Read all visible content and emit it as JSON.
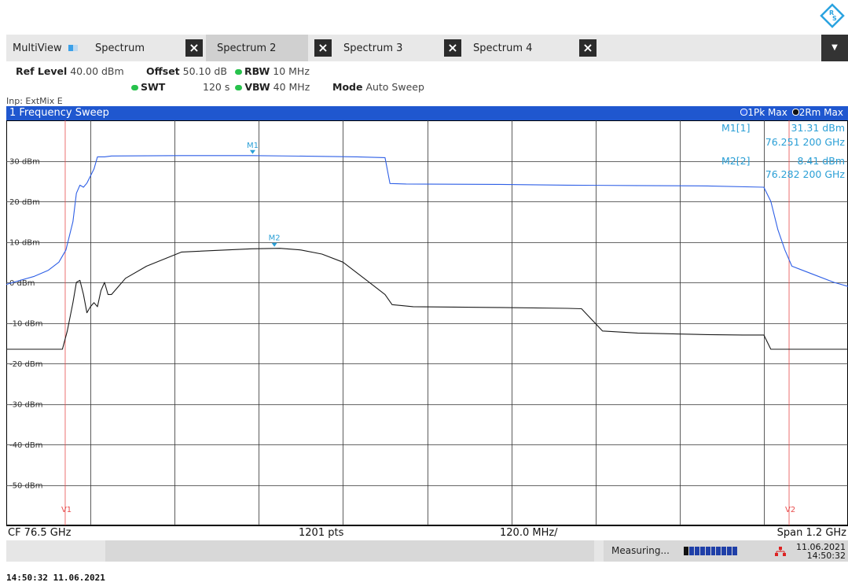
{
  "logo": {
    "icon": "rs-logo-icon"
  },
  "tabs": [
    {
      "label": "MultiView",
      "active": false
    },
    {
      "label": "Spectrum",
      "active": false
    },
    {
      "label": "Spectrum 2",
      "active": true
    },
    {
      "label": "Spectrum 3",
      "active": false
    },
    {
      "label": "Spectrum 4",
      "active": false
    }
  ],
  "params": {
    "ref_level_label": "Ref Level",
    "ref_level_value": "40.00 dBm",
    "offset_label": "Offset",
    "offset_value": "50.10 dB",
    "rbw_label": "RBW",
    "rbw_value": "10 MHz",
    "swt_label": "SWT",
    "swt_value": "120 s",
    "vbw_label": "VBW",
    "vbw_value": "40 MHz",
    "mode_label": "Mode",
    "mode_value": "Auto Sweep",
    "input": "Inp: ExtMix E"
  },
  "window": {
    "title": "1 Frequency Sweep",
    "trace1": "1Pk Max",
    "trace2": "2Rm Max"
  },
  "markers": {
    "m1_label": "M1[1]",
    "m1_level": "31.31 dBm",
    "m1_freq": "76.251 200 GHz",
    "m2_label": "M2[2]",
    "m2_level": "8.41 dBm",
    "m2_freq": "76.282 200 GHz",
    "m1_tag": "M1",
    "m2_tag": "M2"
  },
  "lines": {
    "v1": "V1",
    "v2": "V2"
  },
  "footer": {
    "cf": "CF 76.5 GHz",
    "pts": "1201 pts",
    "div": "120.0 MHz/",
    "span": "Span 1.2 GHz"
  },
  "status": {
    "measuring": "Measuring...",
    "date": "11.06.2021",
    "time": "14:50:32"
  },
  "caption": "14:50:32  11.06.2021",
  "chart_data": {
    "type": "line",
    "x_unit": "GHz",
    "xlim": [
      75.9,
      77.1
    ],
    "ylim": [
      -60,
      40
    ],
    "y_ticks": [
      "30 dBm",
      "20 dBm",
      "10 dBm",
      "0 dBm",
      "-10 dBm",
      "-20 dBm",
      "-30 dBm",
      "-40 dBm",
      "-50 dBm"
    ],
    "y_tick_values": [
      30,
      20,
      10,
      0,
      -10,
      -20,
      -30,
      -40,
      -50
    ],
    "vertical_lines": [
      {
        "label": "V1",
        "x": 75.984
      },
      {
        "label": "V2",
        "x": 77.016
      }
    ],
    "markers": [
      {
        "label": "M1",
        "x": 76.2512,
        "y": 31.31,
        "color": "#2a9fd6"
      },
      {
        "label": "M2",
        "x": 76.2822,
        "y": 8.41,
        "color": "#2a9fd6"
      }
    ],
    "series": [
      {
        "name": "1Pk Max",
        "color": "#2e5fe6",
        "x": [
          75.9,
          75.92,
          75.94,
          75.96,
          75.975,
          75.985,
          75.995,
          76.0,
          76.005,
          76.01,
          76.015,
          76.025,
          76.03,
          76.04,
          76.05,
          76.15,
          76.25,
          76.35,
          76.4,
          76.44,
          76.447,
          76.47,
          76.6,
          76.7,
          76.8,
          76.9,
          76.98,
          76.99,
          77.0,
          77.01,
          77.02,
          77.05,
          77.08,
          77.1
        ],
        "y": [
          -0.5,
          0.5,
          1.5,
          3,
          5,
          8,
          15,
          22,
          24,
          23.5,
          24.5,
          28,
          31,
          31,
          31.2,
          31.3,
          31.31,
          31.1,
          31.0,
          30.8,
          24.4,
          24.3,
          24.2,
          24.0,
          23.9,
          23.8,
          23.5,
          20,
          13,
          8,
          4,
          2,
          0,
          -1
        ]
      },
      {
        "name": "2Rm Max",
        "color": "#1a1a1a",
        "x": [
          75.9,
          75.98,
          75.987,
          75.995,
          76.0,
          76.005,
          76.01,
          76.015,
          76.02,
          76.025,
          76.03,
          76.035,
          76.04,
          76.045,
          76.05,
          76.06,
          76.07,
          76.1,
          76.15,
          76.25,
          76.29,
          76.32,
          76.35,
          76.38,
          76.41,
          76.44,
          76.45,
          76.48,
          76.6,
          76.7,
          76.72,
          76.75,
          76.8,
          76.9,
          76.95,
          76.98,
          76.99,
          77.1
        ],
        "y": [
          -16.5,
          -16.5,
          -12,
          -5,
          0,
          0.5,
          -3,
          -7.5,
          -6,
          -5,
          -6,
          -2,
          0,
          -3,
          -3,
          -1,
          1,
          4,
          7.5,
          8.3,
          8.41,
          8.0,
          7.0,
          5.0,
          1.0,
          -3.0,
          -5.5,
          -6.0,
          -6.2,
          -6.4,
          -6.5,
          -12.0,
          -12.5,
          -12.9,
          -13.0,
          -13.0,
          -16.5,
          -16.5
        ]
      }
    ]
  }
}
